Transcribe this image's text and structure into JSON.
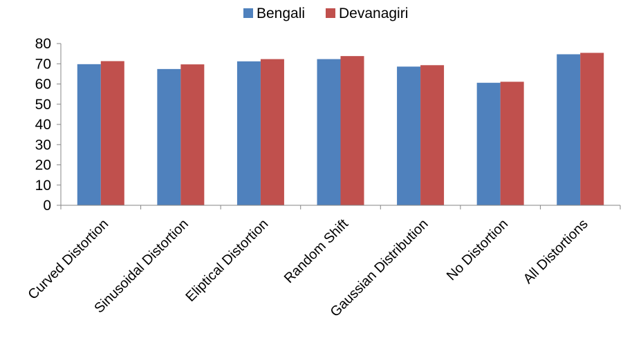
{
  "chart_data": {
    "type": "bar",
    "categories": [
      "Curved Distortion",
      "Sinusoidal Distortion",
      "Eliptical Distortion",
      "Random Shift",
      "Gaussian Distribution",
      "No Distortion",
      "All Distortions"
    ],
    "series": [
      {
        "name": "Bengali",
        "color": "#4f81bd",
        "values": [
          69.8,
          67.4,
          71.2,
          72.3,
          68.6,
          60.6,
          74.7
        ]
      },
      {
        "name": "Devanagiri",
        "color": "#c0504d",
        "values": [
          71.3,
          69.7,
          72.3,
          73.8,
          69.3,
          61.1,
          75.4
        ]
      }
    ],
    "title": "",
    "xlabel": "",
    "ylabel": "",
    "ylim": [
      0,
      80
    ],
    "yticks": [
      0,
      10,
      20,
      30,
      40,
      50,
      60,
      70,
      80
    ],
    "grid": false,
    "legend_position": "top-center"
  }
}
